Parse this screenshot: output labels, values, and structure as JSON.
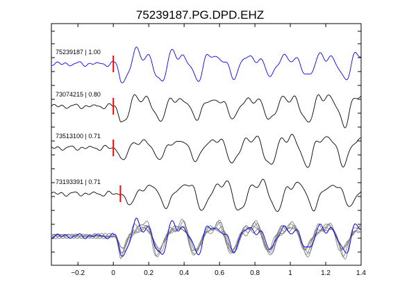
{
  "chart_data": {
    "type": "line",
    "title": "75239187.PG.DPD.EHZ",
    "xlabel": "",
    "ylabel": "",
    "xlim": [
      -0.35,
      1.4
    ],
    "x_ticks": [
      -0.2,
      0,
      0.2,
      0.4,
      0.6,
      0.8,
      1,
      1.2,
      1.4
    ],
    "x_tick_labels": [
      "−0.2",
      "0",
      "0.2",
      "0.4",
      "0.6",
      "0.8",
      "1",
      "1.2",
      "1.4"
    ],
    "grid": false,
    "series": [
      {
        "name": "75239187 | 1.00",
        "pick_time": 0.0,
        "color": "#0000ff"
      },
      {
        "name": "73074215 | 0.80",
        "pick_time": 0.0,
        "color": "#000000"
      },
      {
        "name": "73513100 | 0.71",
        "pick_time": 0.0,
        "color": "#000000"
      },
      {
        "name": "73193391 | 0.71",
        "pick_time": 0.04,
        "color": "#000000"
      }
    ],
    "stack": {
      "primary_color": "#0000ff",
      "others_color": "#808080"
    },
    "pick_color": "#ff0000"
  }
}
